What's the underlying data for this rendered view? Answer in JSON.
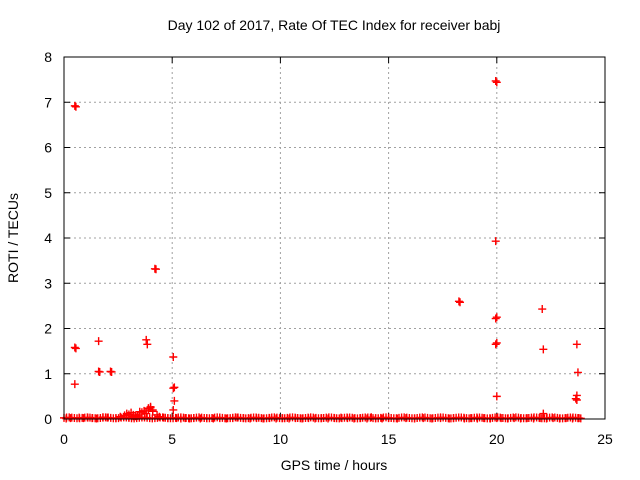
{
  "chart_data": {
    "type": "scatter",
    "title": "Day 102 of 2017, Rate Of TEC Index for receiver babj",
    "xlabel": "GPS time / hours",
    "ylabel": "ROTI / TECUs",
    "xlim": [
      0,
      25
    ],
    "ylim": [
      0,
      8
    ],
    "xticks": [
      "0",
      "5",
      "10",
      "15",
      "20",
      "25"
    ],
    "yticks": [
      "0",
      "1",
      "2",
      "3",
      "4",
      "5",
      "6",
      "7",
      "8"
    ],
    "grid": true,
    "legend": "none",
    "marker": "+",
    "color": "#ff0000",
    "series": [
      {
        "x": [
          0.5,
          0.55,
          0.5,
          0.55,
          0.5,
          1.6,
          1.65,
          1.6,
          2.15,
          2.2,
          3.8,
          3.85,
          4.2,
          4.25,
          5.05,
          5.1,
          5.05,
          5.1,
          5.05,
          18.25,
          18.3,
          19.95,
          20.0,
          19.95,
          20.0,
          19.95,
          20.0,
          19.95,
          20.0,
          20.0,
          22.1,
          22.15,
          22.15,
          23.7,
          23.75,
          23.7,
          23.65,
          23.7,
          23.75,
          0.1,
          0.3,
          0.7,
          0.9,
          1.1,
          1.3,
          1.5,
          1.8,
          2.0,
          2.4,
          2.6,
          2.8,
          2.9,
          3.0,
          3.1,
          3.2,
          3.3,
          3.4,
          3.5,
          3.6,
          3.7,
          3.9,
          4.0,
          4.1,
          4.3,
          4.4,
          4.6,
          4.8,
          5.2,
          5.4,
          5.6,
          5.8,
          6.0,
          6.3,
          6.6,
          6.9,
          7.2,
          7.5,
          7.8,
          8.0,
          8.3,
          8.6,
          8.9,
          9.2,
          9.5,
          9.8,
          10.1,
          10.4,
          10.7,
          11.0,
          11.3,
          11.6,
          11.9,
          12.2,
          12.5,
          12.8,
          13.1,
          13.4,
          13.7,
          14.0,
          14.2,
          14.4,
          14.7,
          15.0,
          15.4,
          15.8,
          16.2,
          16.6,
          17.0,
          17.4,
          17.8,
          18.0,
          18.5,
          18.8,
          19.1,
          19.4,
          19.7,
          20.2,
          20.5,
          20.8,
          21.1,
          21.4,
          21.7,
          22.0,
          22.3,
          22.6,
          22.9,
          23.2,
          23.5,
          23.8,
          3.0,
          3.2,
          3.5,
          3.8,
          4.0,
          4.1,
          3.9,
          3.3
        ],
        "y": [
          6.92,
          6.9,
          1.58,
          1.56,
          0.77,
          1.72,
          1.04,
          1.05,
          1.05,
          1.04,
          1.75,
          1.65,
          3.32,
          3.31,
          1.37,
          0.7,
          0.68,
          0.4,
          0.2,
          2.6,
          2.58,
          7.47,
          7.44,
          3.93,
          2.25,
          2.22,
          1.68,
          1.65,
          0.5,
          0.02,
          2.43,
          1.54,
          0.12,
          1.65,
          1.03,
          0.52,
          0.45,
          0.42,
          0.02,
          0.01,
          0.02,
          0.03,
          0.02,
          0.03,
          0.02,
          0.01,
          0.04,
          0.03,
          0.02,
          0.05,
          0.08,
          0.12,
          0.1,
          0.14,
          0.09,
          0.06,
          0.07,
          0.11,
          0.15,
          0.18,
          0.22,
          0.25,
          0.17,
          0.09,
          0.05,
          0.03,
          0.02,
          0.02,
          0.01,
          0.02,
          0.01,
          0.02,
          0.01,
          0.02,
          0.01,
          0.02,
          0.01,
          0.02,
          0.03,
          0.02,
          0.01,
          0.02,
          0.01,
          0.02,
          0.01,
          0.02,
          0.01,
          0.02,
          0.01,
          0.02,
          0.01,
          0.02,
          0.01,
          0.02,
          0.03,
          0.02,
          0.01,
          0.02,
          0.01,
          0.04,
          0.02,
          0.01,
          0.02,
          0.01,
          0.02,
          0.01,
          0.02,
          0.01,
          0.02,
          0.01,
          0.02,
          0.01,
          0.02,
          0.01,
          0.02,
          0.01,
          0.02,
          0.01,
          0.02,
          0.01,
          0.02,
          0.01,
          0.02,
          0.01,
          0.02,
          0.01,
          0.02,
          0.01,
          0.02,
          0.04,
          0.06,
          0.16,
          0.12,
          0.27,
          0.2,
          0.24,
          0.08
        ]
      }
    ]
  }
}
